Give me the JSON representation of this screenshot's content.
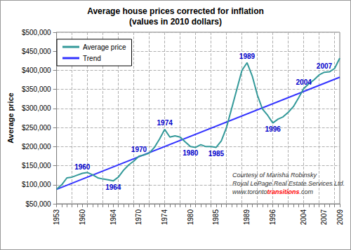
{
  "chart_data": {
    "type": "line",
    "title": "Average house prices corrected for inflation",
    "subtitle": "(values in 2010 dollars)",
    "y_label": "Average price",
    "categories": [
      "1953",
      null,
      null,
      null,
      null,
      "1960",
      null,
      null,
      null,
      null,
      null,
      "1964",
      null,
      null,
      null,
      null,
      "1970",
      null,
      null,
      null,
      null,
      "1974",
      null,
      null,
      null,
      null,
      "1980",
      null,
      null,
      null,
      null,
      "1985",
      null,
      null,
      null,
      null,
      null,
      "1989",
      null,
      null,
      null,
      null,
      "1996",
      null,
      null,
      null,
      null,
      null,
      "2004",
      null,
      null,
      null,
      "2007",
      null,
      null,
      "2009"
    ],
    "series": [
      {
        "name": "Average price",
        "color": "#339999",
        "values": [
          88000,
          100000,
          118000,
          120000,
          125000,
          130000,
          132000,
          126000,
          118000,
          115000,
          113000,
          110000,
          120000,
          138000,
          152000,
          162000,
          175000,
          178000,
          183000,
          198000,
          220000,
          245000,
          225000,
          228000,
          225000,
          212000,
          200000,
          198000,
          205000,
          200000,
          200000,
          198000,
          215000,
          250000,
          300000,
          350000,
          400000,
          420000,
          385000,
          335000,
          298000,
          282000,
          262000,
          272000,
          278000,
          290000,
          305000,
          328000,
          352000,
          365000,
          375000,
          388000,
          395000,
          396000,
          405000,
          432000
        ]
      },
      {
        "name": "Trend",
        "color": "#3333ff",
        "values": [
          88000,
          null,
          null,
          null,
          null,
          null,
          null,
          null,
          null,
          null,
          null,
          null,
          null,
          null,
          null,
          null,
          null,
          null,
          null,
          null,
          null,
          null,
          null,
          null,
          null,
          null,
          null,
          null,
          null,
          null,
          null,
          null,
          null,
          null,
          null,
          null,
          null,
          null,
          null,
          null,
          null,
          null,
          null,
          null,
          null,
          null,
          null,
          null,
          null,
          null,
          null,
          null,
          null,
          null,
          null,
          382000
        ]
      }
    ],
    "ylim": [
      50000,
      500000
    ],
    "yticks": [
      {
        "value": 50000,
        "label": "$50,000"
      },
      {
        "value": 100000,
        "label": "$100,000"
      },
      {
        "value": 150000,
        "label": "$150,000"
      },
      {
        "value": 200000,
        "label": "$200,000"
      },
      {
        "value": 250000,
        "label": "$250,000"
      },
      {
        "value": 300000,
        "label": "$300,000"
      },
      {
        "value": 350000,
        "label": "$350,000"
      },
      {
        "value": 400000,
        "label": "$400,000"
      },
      {
        "value": 450000,
        "label": "$450,000"
      },
      {
        "value": 500000,
        "label": "$500,000"
      }
    ],
    "grid": true,
    "legend": "upper left",
    "annotations": [
      {
        "text": "1960",
        "category": "1960",
        "position": "above"
      },
      {
        "text": "1964",
        "category": "1964",
        "position": "below"
      },
      {
        "text": "1970",
        "category": "1970",
        "position": "above"
      },
      {
        "text": "1974",
        "category": "1974",
        "position": "above"
      },
      {
        "text": "1980",
        "category": "1980",
        "position": "below"
      },
      {
        "text": "1985",
        "category": "1985",
        "position": "below"
      },
      {
        "text": "1989",
        "category": "1989",
        "position": "above"
      },
      {
        "text": "1996",
        "category": "1996",
        "position": "below"
      },
      {
        "text": "2004",
        "category": "2004",
        "position": "above"
      },
      {
        "text": "2007",
        "category": "2007",
        "position": "above"
      }
    ],
    "credit": [
      "Courtesy of Marisha Robinsky",
      "Royal LePage Real Estate Services Ltd."
    ],
    "credit_link": [
      {
        "text": "www.toronto"
      },
      {
        "text": "transitions",
        "color": "#ff0000"
      },
      {
        "text": ".com"
      }
    ]
  }
}
